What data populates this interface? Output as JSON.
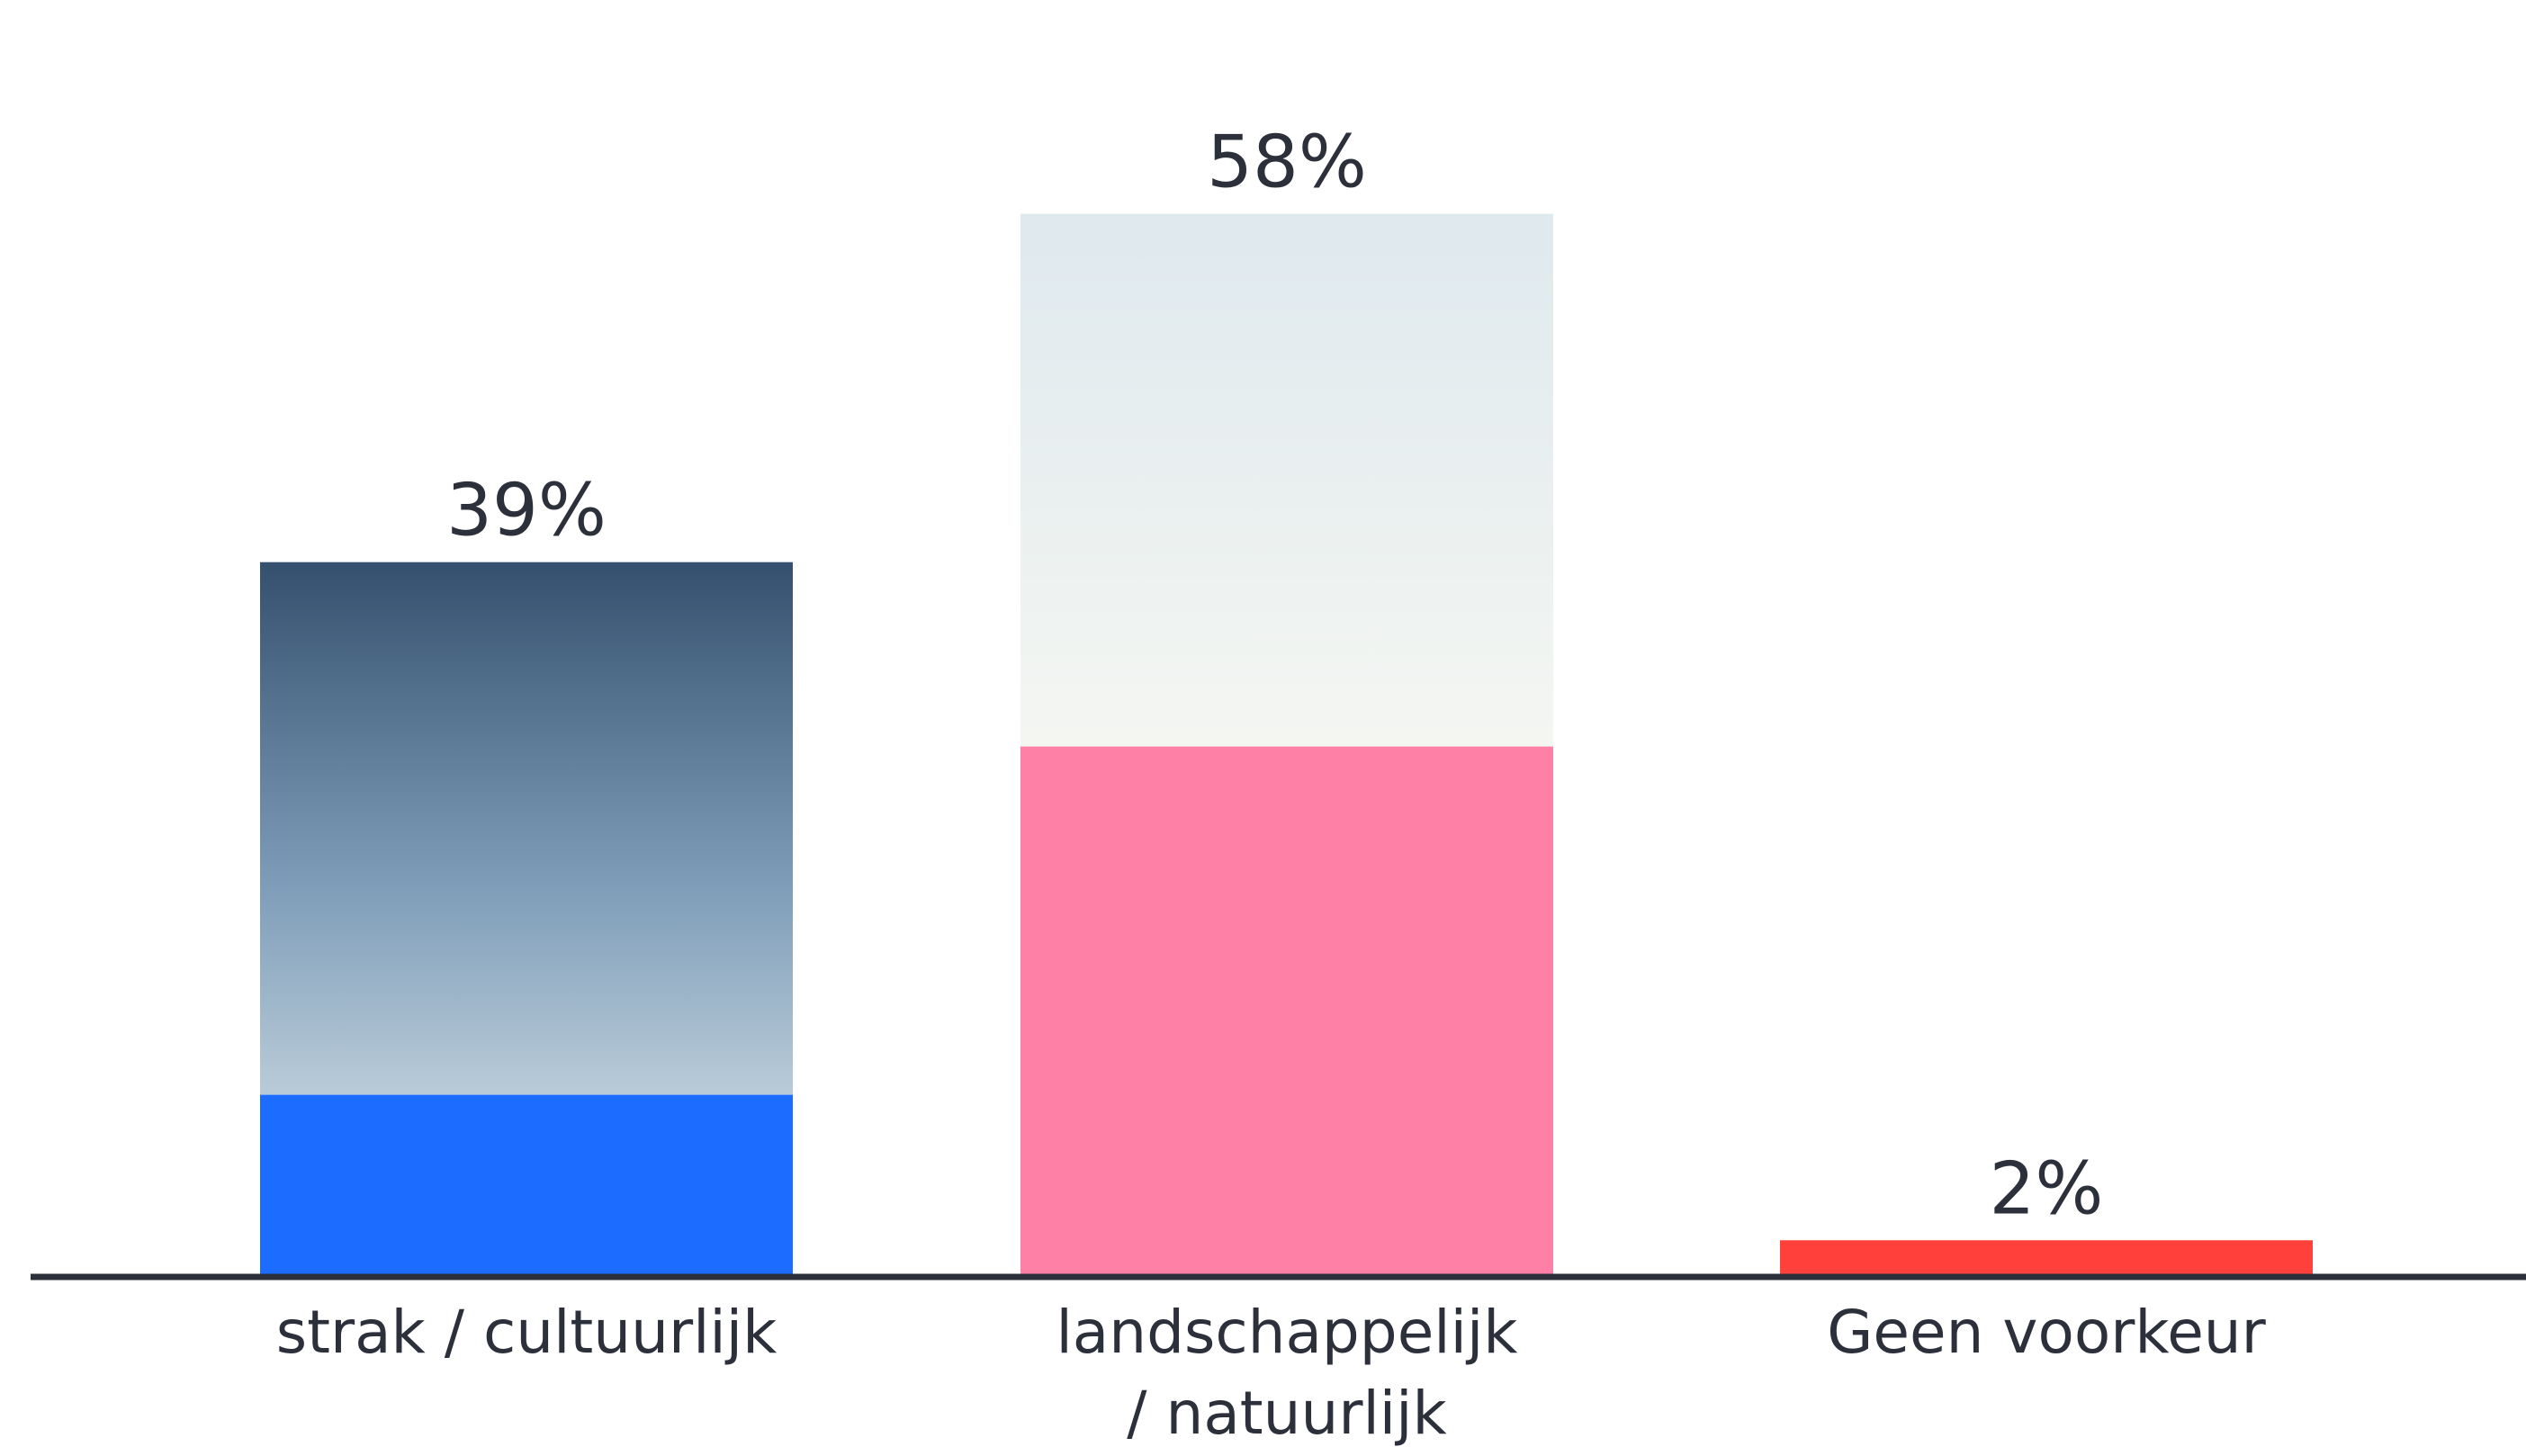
{
  "chart_data": {
    "type": "bar",
    "title": "",
    "xlabel": "",
    "ylabel": "",
    "ylim": [
      0,
      65
    ],
    "grid": false,
    "legend": "none",
    "categories": [
      [
        "strak / cultuurlijk"
      ],
      [
        "landschappelijk",
        "/ natuurlijk"
      ],
      [
        "Geen voorkeur"
      ]
    ],
    "values": [
      39,
      58,
      2
    ],
    "value_labels": [
      "39%",
      "58%",
      "2%"
    ],
    "photos": [
      "photo-brick-houses-street-roundabout",
      "photo-white-house-wildflower-meadow",
      ""
    ],
    "colors": {
      "bars": [
        "#1c6cff",
        "#ff80a6",
        "#ff403b"
      ],
      "axis": "#2b303a",
      "text": "#2b303a",
      "background": "#ffffff"
    }
  }
}
